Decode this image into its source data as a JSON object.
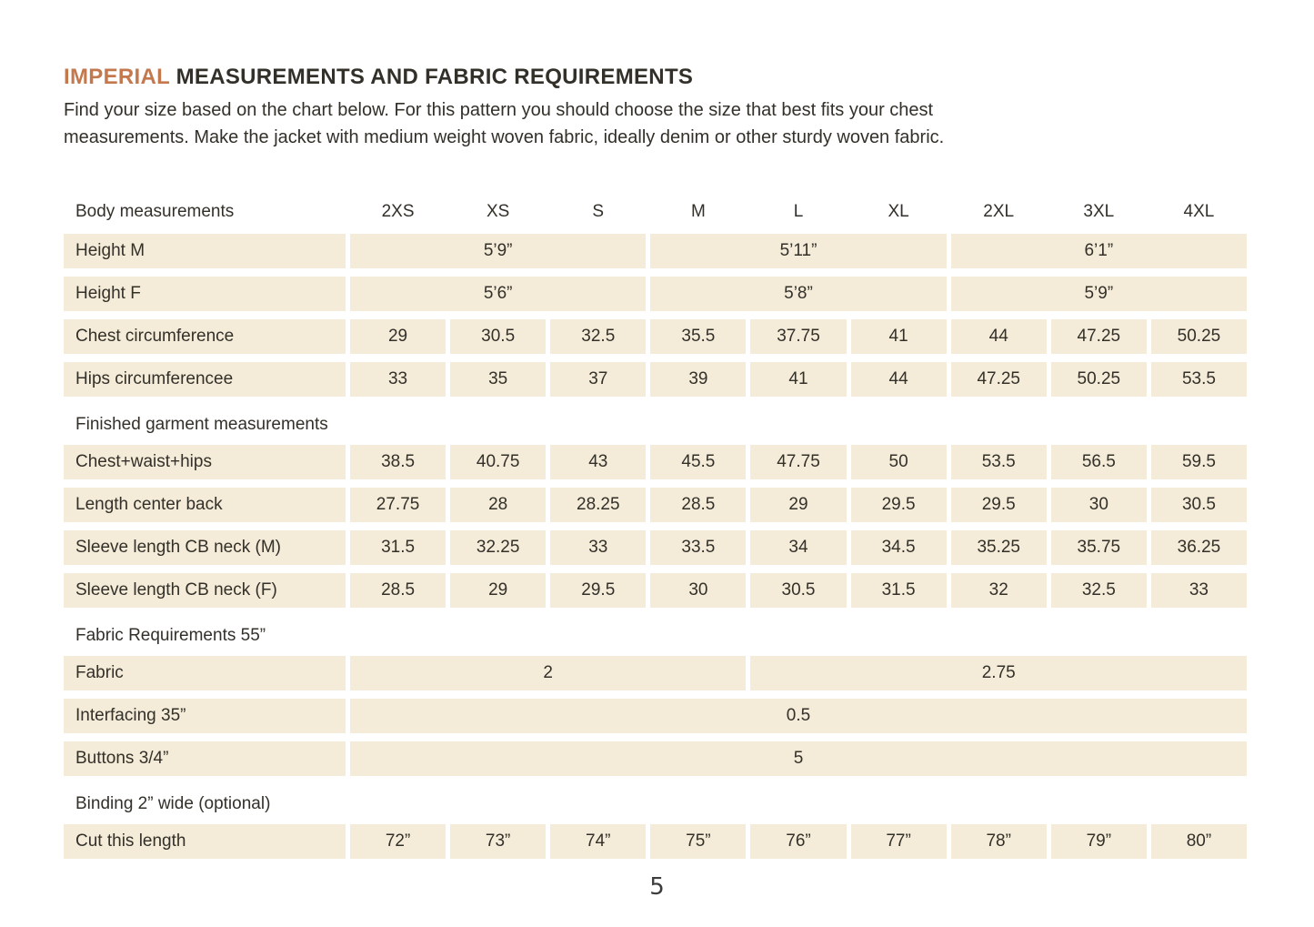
{
  "page": {
    "title_accent": "IMPERIAL",
    "title_rest": "MEASUREMENTS AND FABRIC REQUIREMENTS",
    "intro_lines": [
      "Find your size based on the chart below. For this pattern you should choose the size that best fits your chest",
      "measurements. Make the jacket with medium weight woven fabric, ideally denim or other sturdy woven fabric."
    ],
    "page_number": "5"
  },
  "colors": {
    "accent": "#c3784e",
    "cell_background": "#f4ecd8",
    "text": "#33302a"
  },
  "table": {
    "corner_label": "Body measurements",
    "size_columns": [
      "2XS",
      "XS",
      "S",
      "M",
      "L",
      "XL",
      "2XL",
      "3XL",
      "4XL"
    ],
    "rows": [
      {
        "kind": "data",
        "label": "Height M",
        "cells": [
          {
            "text": "5’9”",
            "span": 3
          },
          {
            "text": "5’11”",
            "span": 3
          },
          {
            "text": "6’1”",
            "span": 3
          }
        ]
      },
      {
        "kind": "data",
        "label": "Height F",
        "cells": [
          {
            "text": "5’6”",
            "span": 3
          },
          {
            "text": "5’8”",
            "span": 3
          },
          {
            "text": "5’9”",
            "span": 3
          }
        ]
      },
      {
        "kind": "data",
        "label": "Chest circumference",
        "cells": [
          {
            "text": "29"
          },
          {
            "text": "30.5"
          },
          {
            "text": "32.5"
          },
          {
            "text": "35.5"
          },
          {
            "text": "37.75"
          },
          {
            "text": "41"
          },
          {
            "text": "44"
          },
          {
            "text": "47.25"
          },
          {
            "text": "50.25"
          }
        ]
      },
      {
        "kind": "data",
        "label": "Hips circumferencee",
        "cells": [
          {
            "text": "33"
          },
          {
            "text": "35"
          },
          {
            "text": "37"
          },
          {
            "text": "39"
          },
          {
            "text": "41"
          },
          {
            "text": "44"
          },
          {
            "text": "47.25"
          },
          {
            "text": "50.25"
          },
          {
            "text": "53.5"
          }
        ]
      },
      {
        "kind": "section",
        "label": "Finished garment measurements"
      },
      {
        "kind": "data",
        "label": "Chest+waist+hips",
        "cells": [
          {
            "text": "38.5"
          },
          {
            "text": "40.75"
          },
          {
            "text": "43"
          },
          {
            "text": "45.5"
          },
          {
            "text": "47.75"
          },
          {
            "text": "50"
          },
          {
            "text": "53.5"
          },
          {
            "text": "56.5"
          },
          {
            "text": "59.5"
          }
        ]
      },
      {
        "kind": "data",
        "label": "Length center back",
        "cells": [
          {
            "text": "27.75"
          },
          {
            "text": "28"
          },
          {
            "text": "28.25"
          },
          {
            "text": "28.5"
          },
          {
            "text": "29"
          },
          {
            "text": "29.5"
          },
          {
            "text": "29.5"
          },
          {
            "text": "30"
          },
          {
            "text": "30.5"
          }
        ]
      },
      {
        "kind": "data",
        "label": "Sleeve length CB neck (M)",
        "cells": [
          {
            "text": "31.5"
          },
          {
            "text": "32.25"
          },
          {
            "text": "33"
          },
          {
            "text": "33.5"
          },
          {
            "text": "34"
          },
          {
            "text": "34.5"
          },
          {
            "text": "35.25"
          },
          {
            "text": "35.75"
          },
          {
            "text": "36.25"
          }
        ]
      },
      {
        "kind": "data",
        "label": "Sleeve length CB neck (F)",
        "cells": [
          {
            "text": "28.5"
          },
          {
            "text": "29"
          },
          {
            "text": "29.5"
          },
          {
            "text": "30"
          },
          {
            "text": "30.5"
          },
          {
            "text": "31.5"
          },
          {
            "text": "32"
          },
          {
            "text": "32.5"
          },
          {
            "text": "33"
          }
        ]
      },
      {
        "kind": "section",
        "label": "Fabric Requirements 55”"
      },
      {
        "kind": "data",
        "label": "Fabric",
        "cells": [
          {
            "text": "2",
            "span": 4
          },
          {
            "text": "2.75",
            "span": 5
          }
        ]
      },
      {
        "kind": "data",
        "label": "Interfacing 35”",
        "cells": [
          {
            "text": "0.5",
            "span": 9
          }
        ]
      },
      {
        "kind": "data",
        "label": "Buttons 3/4”",
        "cells": [
          {
            "text": "5",
            "span": 9
          }
        ]
      },
      {
        "kind": "section",
        "label": "Binding 2” wide (optional)"
      },
      {
        "kind": "data",
        "label": "Cut this length",
        "cells": [
          {
            "text": "72”"
          },
          {
            "text": "73”"
          },
          {
            "text": "74”"
          },
          {
            "text": "75”"
          },
          {
            "text": "76”"
          },
          {
            "text": "77”"
          },
          {
            "text": "78”"
          },
          {
            "text": "79”"
          },
          {
            "text": "80”"
          }
        ]
      }
    ]
  }
}
